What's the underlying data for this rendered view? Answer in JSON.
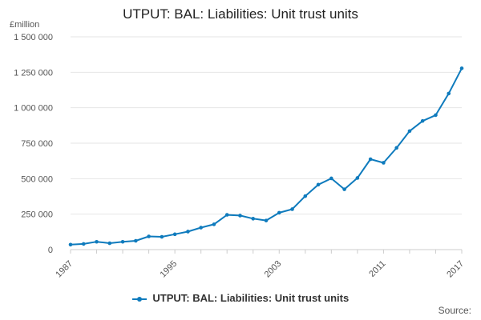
{
  "header": {
    "title": "UTPUT: BAL: Liabilities: Unit trust units",
    "unit_label": "£million"
  },
  "legend": {
    "label": "UTPUT: BAL: Liabilities: Unit trust units"
  },
  "footer": {
    "source": "Source:"
  },
  "colors": {
    "series": "#0f7bbd",
    "grid": "#e6e6e6",
    "axis": "#cccccc"
  },
  "chart_data": {
    "type": "line",
    "title": "UTPUT: BAL: Liabilities: Unit trust units",
    "xlabel": "",
    "ylabel": "£million",
    "xlim": [
      1987,
      2017
    ],
    "ylim": [
      0,
      1500000
    ],
    "grid": true,
    "legend_position": "bottom",
    "x_tick_values": [
      1987,
      1995,
      2003,
      2011,
      2017
    ],
    "x_tick_labels": [
      "1987",
      "1995",
      "2003",
      "2011",
      "2017"
    ],
    "y_tick_values": [
      0,
      250000,
      500000,
      750000,
      1000000,
      1250000,
      1500000
    ],
    "y_tick_labels": [
      "0",
      "250 000",
      "500 000",
      "750 000",
      "1 000 000",
      "1 250 000",
      "1 500 000"
    ],
    "series": [
      {
        "name": "UTPUT: BAL: Liabilities: Unit trust units",
        "x": [
          1987,
          1988,
          1989,
          1990,
          1991,
          1992,
          1993,
          1994,
          1995,
          1996,
          1997,
          1998,
          1999,
          2000,
          2001,
          2002,
          2003,
          2004,
          2005,
          2006,
          2007,
          2008,
          2009,
          2010,
          2011,
          2012,
          2013,
          2014,
          2015,
          2016,
          2017
        ],
        "values": [
          35000,
          40000,
          55000,
          45000,
          55000,
          62000,
          93000,
          90000,
          108000,
          127000,
          155000,
          178000,
          245000,
          240000,
          218000,
          205000,
          260000,
          285000,
          377000,
          458000,
          502000,
          425000,
          505000,
          637000,
          612000,
          717000,
          835000,
          907000,
          948000,
          1100000,
          1278000
        ]
      }
    ]
  }
}
